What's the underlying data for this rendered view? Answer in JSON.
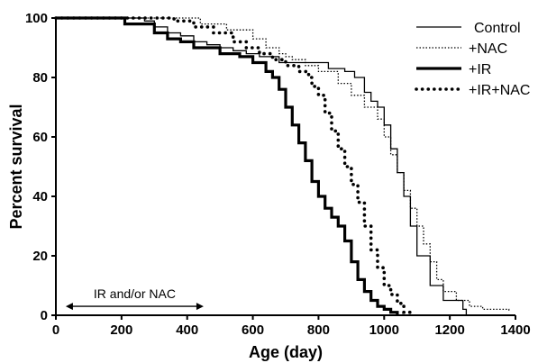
{
  "chart_data": {
    "type": "line",
    "subtype": "kaplan-meier-step",
    "title": "",
    "xlabel": "Age (day)",
    "ylabel": "Percent survival",
    "xlim": [
      0,
      1400
    ],
    "ylim": [
      0,
      100
    ],
    "xticks": [
      0,
      200,
      400,
      600,
      800,
      1000,
      1200,
      1400
    ],
    "yticks": [
      0,
      20,
      40,
      60,
      80,
      100
    ],
    "grid": false,
    "legend_position": "top-right",
    "series": [
      {
        "name": "Control",
        "style": "thin-solid",
        "color": "#000000",
        "points": [
          [
            0,
            100
          ],
          [
            200,
            100
          ],
          [
            270,
            99
          ],
          [
            300,
            97
          ],
          [
            340,
            95
          ],
          [
            380,
            94
          ],
          [
            420,
            92
          ],
          [
            460,
            91
          ],
          [
            500,
            90
          ],
          [
            540,
            89
          ],
          [
            580,
            88
          ],
          [
            620,
            87
          ],
          [
            680,
            85
          ],
          [
            780,
            85
          ],
          [
            830,
            83
          ],
          [
            880,
            82
          ],
          [
            910,
            80
          ],
          [
            940,
            75
          ],
          [
            960,
            72
          ],
          [
            980,
            70
          ],
          [
            1000,
            64
          ],
          [
            1020,
            56
          ],
          [
            1040,
            48
          ],
          [
            1060,
            40
          ],
          [
            1080,
            30
          ],
          [
            1100,
            20
          ],
          [
            1140,
            10
          ],
          [
            1180,
            5
          ],
          [
            1240,
            2
          ],
          [
            1250,
            0
          ]
        ]
      },
      {
        "name": "+NAC",
        "style": "dotted-thin",
        "color": "#000000",
        "points": [
          [
            0,
            100
          ],
          [
            400,
            100
          ],
          [
            440,
            98
          ],
          [
            520,
            96
          ],
          [
            600,
            93
          ],
          [
            640,
            90
          ],
          [
            680,
            88
          ],
          [
            700,
            87
          ],
          [
            720,
            86
          ],
          [
            760,
            84
          ],
          [
            800,
            82
          ],
          [
            860,
            78
          ],
          [
            900,
            74
          ],
          [
            940,
            70
          ],
          [
            980,
            66
          ],
          [
            1000,
            60
          ],
          [
            1020,
            54
          ],
          [
            1040,
            48
          ],
          [
            1060,
            42
          ],
          [
            1080,
            36
          ],
          [
            1100,
            30
          ],
          [
            1120,
            24
          ],
          [
            1140,
            18
          ],
          [
            1160,
            12
          ],
          [
            1180,
            8
          ],
          [
            1220,
            5
          ],
          [
            1260,
            3
          ],
          [
            1300,
            2
          ],
          [
            1380,
            1
          ]
        ]
      },
      {
        "name": "+IR",
        "style": "thick-solid",
        "color": "#000000",
        "points": [
          [
            0,
            100
          ],
          [
            180,
            100
          ],
          [
            210,
            98
          ],
          [
            300,
            95
          ],
          [
            340,
            93
          ],
          [
            380,
            92
          ],
          [
            420,
            90
          ],
          [
            500,
            88
          ],
          [
            560,
            87
          ],
          [
            600,
            85
          ],
          [
            640,
            82
          ],
          [
            660,
            80
          ],
          [
            680,
            76
          ],
          [
            700,
            70
          ],
          [
            720,
            64
          ],
          [
            740,
            58
          ],
          [
            760,
            52
          ],
          [
            780,
            45
          ],
          [
            800,
            40
          ],
          [
            820,
            36
          ],
          [
            840,
            33
          ],
          [
            860,
            30
          ],
          [
            880,
            25
          ],
          [
            900,
            18
          ],
          [
            920,
            12
          ],
          [
            940,
            8
          ],
          [
            960,
            5
          ],
          [
            980,
            3
          ],
          [
            1000,
            2
          ],
          [
            1020,
            1
          ],
          [
            1040,
            0
          ]
        ]
      },
      {
        "name": "+IR+NAC",
        "style": "dotted-thick",
        "color": "#000000",
        "points": [
          [
            0,
            100
          ],
          [
            320,
            100
          ],
          [
            360,
            99
          ],
          [
            420,
            97
          ],
          [
            480,
            95
          ],
          [
            540,
            92
          ],
          [
            580,
            90
          ],
          [
            620,
            88
          ],
          [
            660,
            86
          ],
          [
            700,
            84
          ],
          [
            740,
            82
          ],
          [
            770,
            80
          ],
          [
            780,
            77
          ],
          [
            800,
            74
          ],
          [
            820,
            68
          ],
          [
            840,
            62
          ],
          [
            860,
            56
          ],
          [
            880,
            50
          ],
          [
            900,
            44
          ],
          [
            920,
            38
          ],
          [
            940,
            30
          ],
          [
            960,
            22
          ],
          [
            980,
            16
          ],
          [
            1000,
            10
          ],
          [
            1020,
            7
          ],
          [
            1040,
            4
          ],
          [
            1060,
            1
          ],
          [
            1080,
            0
          ]
        ]
      }
    ],
    "annotations": [
      {
        "text": "IR and/or NAC",
        "x_start": 30,
        "x_end": 450,
        "y": 3
      }
    ]
  }
}
